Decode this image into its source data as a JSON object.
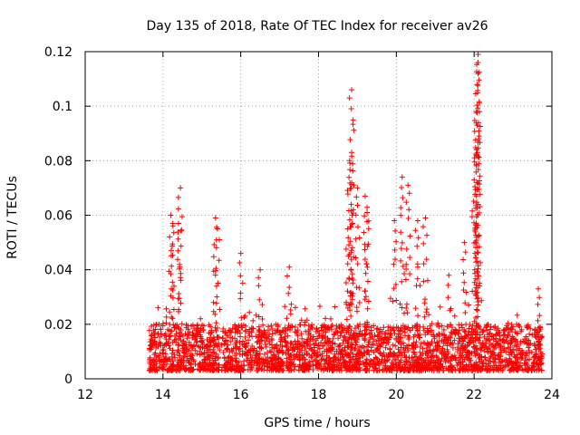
{
  "chart_data": {
    "type": "scatter",
    "title": "Day 135 of 2018, Rate Of TEC Index for receiver av26",
    "xlabel": "GPS time / hours",
    "ylabel": "ROTI / TECUs",
    "xlim": [
      12,
      24
    ],
    "ylim": [
      0,
      0.12
    ],
    "x_ticks": [
      12,
      14,
      16,
      18,
      20,
      22,
      24
    ],
    "x_tick_labels": [
      "12",
      "14",
      "16",
      "18",
      "20",
      "22",
      "24"
    ],
    "y_ticks": [
      0,
      0.02,
      0.04,
      0.06,
      0.08,
      0.1,
      0.12
    ],
    "y_tick_labels": [
      "0",
      "0.02",
      "0.04",
      "0.06",
      "0.08",
      "0.1",
      "0.12"
    ],
    "grid": true,
    "marker": "+",
    "series": [
      {
        "name": "ROTI",
        "color": "#ff0000",
        "envelope": {
          "note": "Dense cloud of per-satellite ROTI points; baseline band approx 0.003-0.02 TECU from 13.65 h to 23.75 h, with isolated spikes listed in peaks",
          "x_range": [
            13.65,
            23.75
          ],
          "baseline_low": 0.003,
          "baseline_high": 0.02
        },
        "peaks": [
          {
            "x": 14.2,
            "y": 0.06
          },
          {
            "x": 14.25,
            "y": 0.057
          },
          {
            "x": 14.45,
            "y": 0.07
          },
          {
            "x": 14.4,
            "y": 0.057
          },
          {
            "x": 15.35,
            "y": 0.059
          },
          {
            "x": 15.4,
            "y": 0.055
          },
          {
            "x": 16.0,
            "y": 0.046
          },
          {
            "x": 16.5,
            "y": 0.04
          },
          {
            "x": 17.25,
            "y": 0.041
          },
          {
            "x": 18.75,
            "y": 0.055
          },
          {
            "x": 18.85,
            "y": 0.106
          },
          {
            "x": 18.85,
            "y": 0.083
          },
          {
            "x": 18.8,
            "y": 0.08
          },
          {
            "x": 19.0,
            "y": 0.07
          },
          {
            "x": 19.2,
            "y": 0.067
          },
          {
            "x": 19.25,
            "y": 0.061
          },
          {
            "x": 19.95,
            "y": 0.058
          },
          {
            "x": 20.15,
            "y": 0.074
          },
          {
            "x": 20.3,
            "y": 0.071
          },
          {
            "x": 20.55,
            "y": 0.058
          },
          {
            "x": 20.75,
            "y": 0.059
          },
          {
            "x": 21.35,
            "y": 0.038
          },
          {
            "x": 21.75,
            "y": 0.05
          },
          {
            "x": 22.0,
            "y": 0.073
          },
          {
            "x": 22.05,
            "y": 0.082
          },
          {
            "x": 22.05,
            "y": 0.098
          },
          {
            "x": 22.1,
            "y": 0.112
          },
          {
            "x": 22.1,
            "y": 0.116
          },
          {
            "x": 22.1,
            "y": 0.119
          },
          {
            "x": 23.65,
            "y": 0.033
          }
        ]
      }
    ]
  }
}
